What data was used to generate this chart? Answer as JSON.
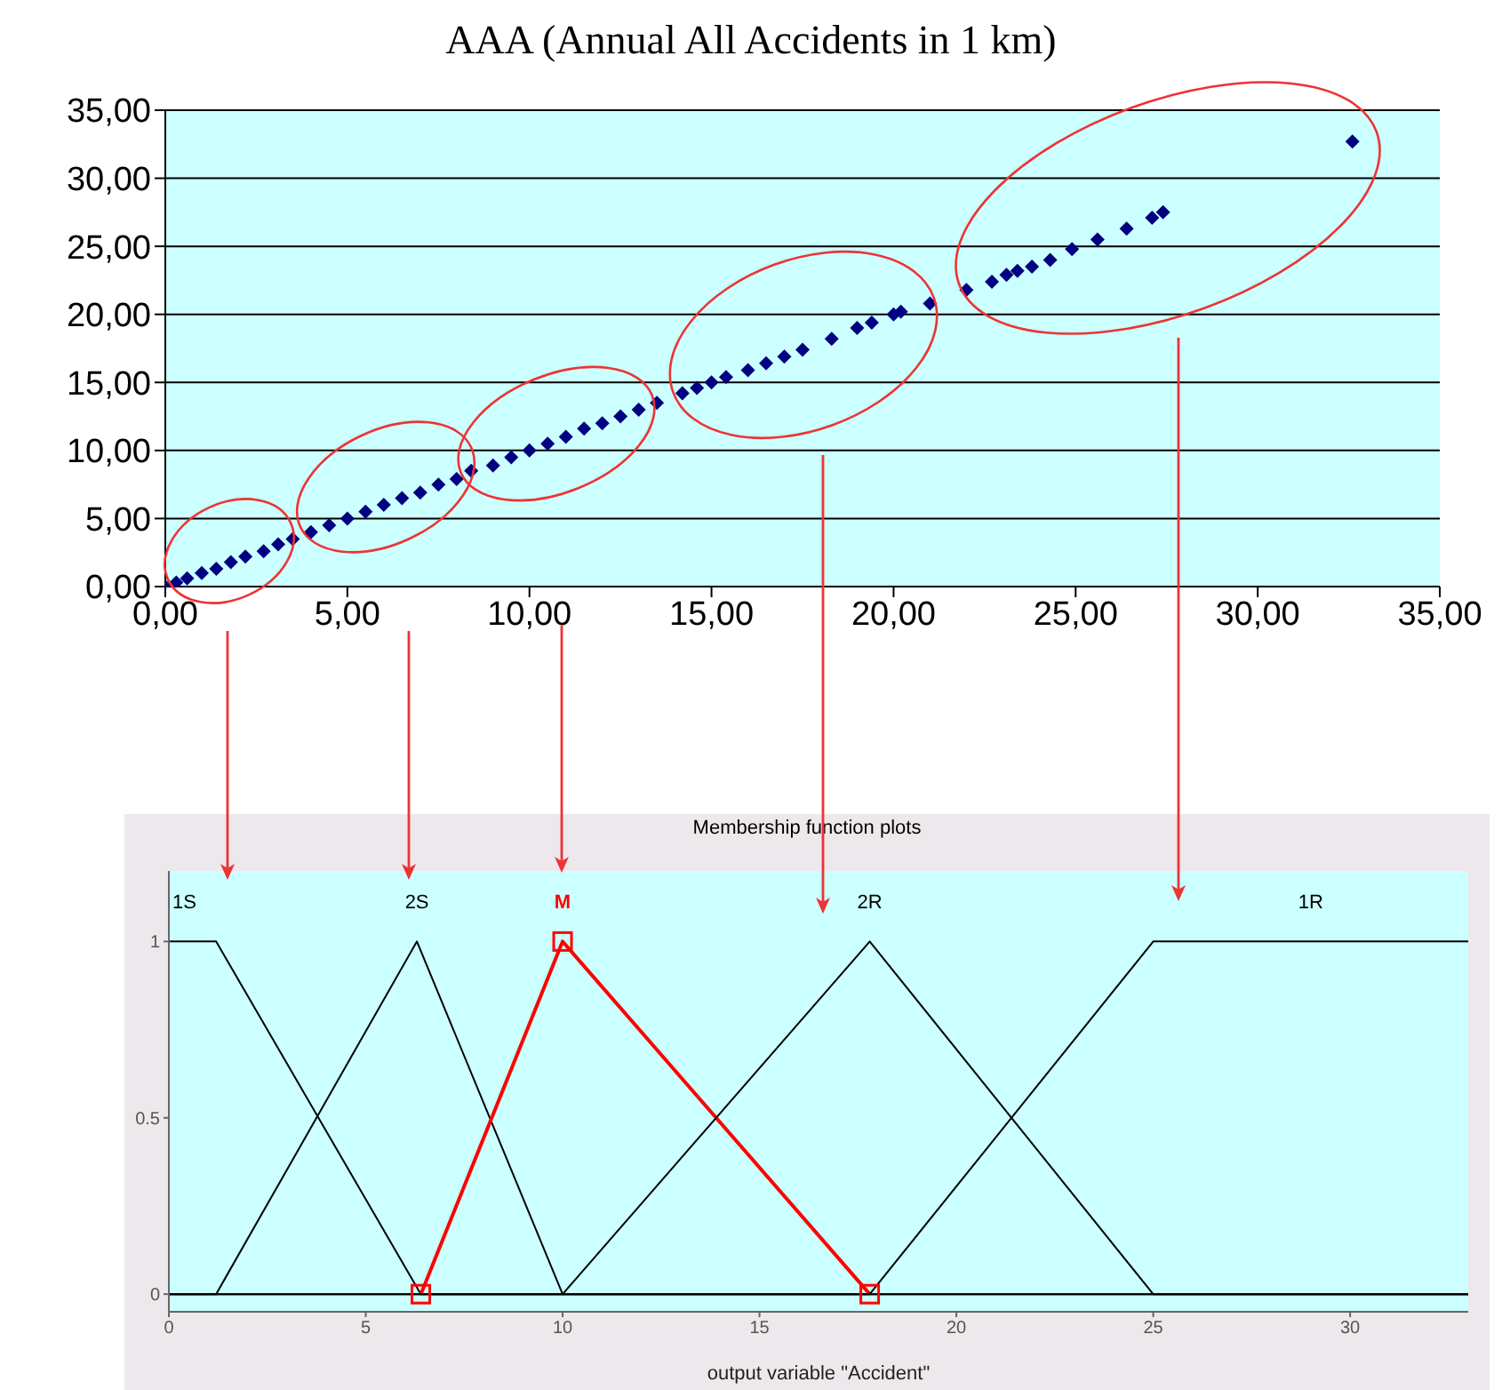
{
  "chart_data": [
    {
      "type": "scatter",
      "title": "AAA (Annual All Accidents in 1 km)",
      "marker": "diamond",
      "grid": "y",
      "xlim": [
        0,
        35
      ],
      "ylim": [
        0,
        35
      ],
      "xticks": [
        {
          "value": 0,
          "label": "0,00"
        },
        {
          "value": 5,
          "label": "5,00"
        },
        {
          "value": 10,
          "label": "10,00"
        },
        {
          "value": 15,
          "label": "15,00"
        },
        {
          "value": 20,
          "label": "20,00"
        },
        {
          "value": 25,
          "label": "25,00"
        },
        {
          "value": 30,
          "label": "30,00"
        },
        {
          "value": 35,
          "label": "35,00"
        }
      ],
      "yticks": [
        {
          "value": 0,
          "label": "0,00"
        },
        {
          "value": 5,
          "label": "5,00"
        },
        {
          "value": 10,
          "label": "10,00"
        },
        {
          "value": 15,
          "label": "15,00"
        },
        {
          "value": 20,
          "label": "20,00"
        },
        {
          "value": 25,
          "label": "25,00"
        },
        {
          "value": 30,
          "label": "30,00"
        },
        {
          "value": 35,
          "label": "35,00"
        }
      ],
      "series": [
        {
          "color": "#000080",
          "x": [
            0,
            0.3,
            0.6,
            1,
            1.4,
            1.8,
            2.2,
            2.7,
            3.1,
            3.5,
            4,
            4.5,
            5,
            5.5,
            6,
            6.5,
            7,
            7.5,
            8,
            8.4,
            9,
            9.5,
            10,
            10.5,
            11,
            11.5,
            12,
            12.5,
            13,
            13.5,
            14.2,
            14.6,
            15,
            15.4,
            16,
            16.5,
            17,
            17.5,
            18.3,
            19,
            19.4,
            20,
            20.2,
            21,
            22,
            22.7,
            23.1,
            23.4,
            23.8,
            24.3,
            24.9,
            25.6,
            26.4,
            27.1,
            27.4,
            32.6
          ],
          "values": [
            0,
            0.3,
            0.6,
            1,
            1.3,
            1.8,
            2.2,
            2.6,
            3.1,
            3.5,
            4,
            4.5,
            5,
            5.5,
            6,
            6.5,
            6.9,
            7.5,
            7.9,
            8.5,
            8.9,
            9.5,
            10,
            10.5,
            11,
            11.6,
            12,
            12.5,
            13,
            13.5,
            14.2,
            14.6,
            15,
            15.4,
            15.9,
            16.4,
            16.9,
            17.4,
            18.2,
            19,
            19.4,
            20,
            20.2,
            20.8,
            21.8,
            22.4,
            22.9,
            23.2,
            23.5,
            24,
            24.8,
            25.5,
            26.3,
            27.1,
            27.5,
            32.7
          ]
        }
      ]
    },
    {
      "type": "line",
      "title": "Membership function plots",
      "xlabel": "output variable \"Accident\"",
      "grid": false,
      "marker": "none",
      "xlim": [
        0,
        33
      ],
      "ylim": [
        -0.05,
        1.2
      ],
      "xticks": [
        0,
        5,
        10,
        15,
        20,
        25,
        30
      ],
      "yticks": [
        0,
        0.5,
        1
      ],
      "series": [
        {
          "name": "1S",
          "color": "#000000",
          "x": [
            0,
            1.2,
            6.4,
            33
          ],
          "values": [
            1,
            1,
            0,
            0
          ]
        },
        {
          "name": "2S",
          "color": "#000000",
          "x": [
            0,
            1.2,
            6.3,
            10,
            33
          ],
          "values": [
            0,
            0,
            1,
            0,
            0
          ]
        },
        {
          "name": "M",
          "color": "#ff0000",
          "marker": "square",
          "x": [
            6.4,
            10,
            17.8
          ],
          "values": [
            0,
            1,
            0
          ]
        },
        {
          "name": "2R",
          "color": "#000000",
          "x": [
            0,
            10,
            17.8,
            25,
            33
          ],
          "values": [
            0,
            0,
            1,
            0,
            0
          ]
        },
        {
          "name": "1R",
          "color": "#000000",
          "x": [
            0,
            17.8,
            25,
            33
          ],
          "values": [
            0,
            0,
            1,
            1
          ]
        }
      ]
    }
  ]
}
